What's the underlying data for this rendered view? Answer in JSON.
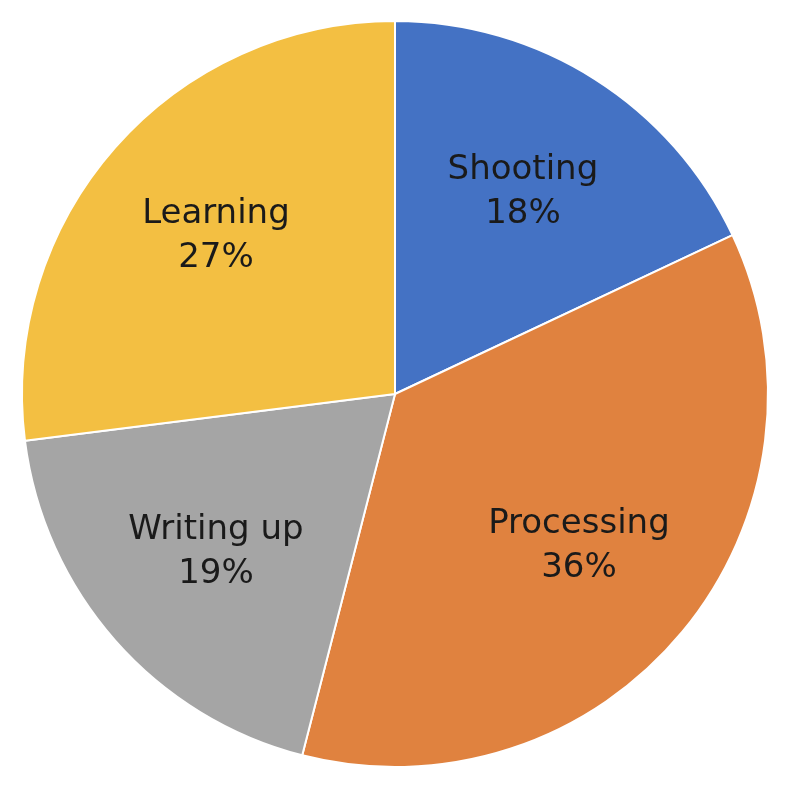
{
  "chart_data": {
    "type": "pie",
    "categories": [
      "Shooting",
      "Processing",
      "Writing up",
      "Learning"
    ],
    "values": [
      18,
      36,
      19,
      27
    ],
    "value_labels": [
      "18%",
      "36%",
      "19%",
      "27%"
    ],
    "colors": [
      "#4472c4",
      "#e0823f",
      "#a5a5a5",
      "#f3bf42"
    ],
    "data_labels": true
  }
}
